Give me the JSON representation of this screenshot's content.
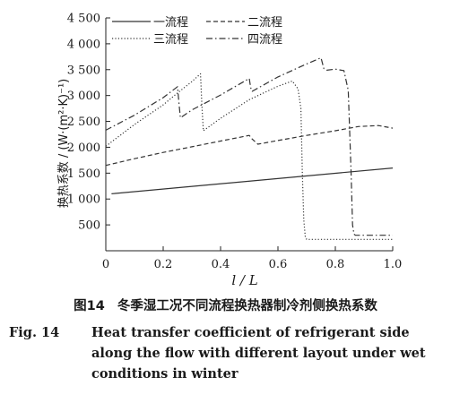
{
  "chart_data": {
    "type": "line",
    "xlabel": "l / L",
    "ylabel": "换热系数 / (W·(m²·K)⁻¹)",
    "xlim": [
      0,
      1.0
    ],
    "ylim": [
      0,
      4500
    ],
    "xticks": [
      "0",
      "0.2",
      "0.4",
      "0.6",
      "0.8",
      "1.0"
    ],
    "yticks": [
      "500",
      "1 000",
      "1 500",
      "2 000",
      "2 500",
      "3 000",
      "3 500",
      "4 000",
      "4 500"
    ],
    "xtick_values": [
      0,
      0.2,
      0.4,
      0.6,
      0.8,
      1.0
    ],
    "ytick_values": [
      500,
      1000,
      1500,
      2000,
      2500,
      3000,
      3500,
      4000,
      4500
    ],
    "legend_position": "top",
    "series": [
      {
        "name": "一流程",
        "style": "solid",
        "color": "#333333",
        "x": [
          0.02,
          1.0
        ],
        "y": [
          1100,
          1600
        ]
      },
      {
        "name": "二流程",
        "style": "dashed",
        "color": "#333333",
        "x": [
          0.0,
          0.1,
          0.2,
          0.3,
          0.4,
          0.5,
          0.51,
          0.53,
          0.6,
          0.7,
          0.8,
          0.88,
          0.95,
          1.0
        ],
        "y": [
          1650,
          1780,
          1900,
          2010,
          2120,
          2230,
          2160,
          2060,
          2130,
          2230,
          2320,
          2400,
          2420,
          2370
        ]
      },
      {
        "name": "三流程",
        "style": "dotted",
        "color": "#333333",
        "x": [
          0.0,
          0.1,
          0.2,
          0.25,
          0.3,
          0.33,
          0.335,
          0.34,
          0.4,
          0.5,
          0.6,
          0.65,
          0.67,
          0.68,
          0.685,
          0.69,
          0.695,
          0.7,
          0.8,
          0.9,
          1.0
        ],
        "y": [
          2020,
          2440,
          2820,
          3050,
          3270,
          3420,
          2800,
          2320,
          2560,
          2920,
          3180,
          3280,
          3130,
          2750,
          1500,
          600,
          280,
          220,
          220,
          220,
          220
        ]
      },
      {
        "name": "四流程",
        "style": "dashdot",
        "color": "#333333",
        "x": [
          0.0,
          0.1,
          0.2,
          0.25,
          0.255,
          0.26,
          0.3,
          0.4,
          0.5,
          0.505,
          0.51,
          0.6,
          0.7,
          0.75,
          0.76,
          0.77,
          0.8,
          0.83,
          0.845,
          0.855,
          0.86,
          0.865,
          0.87,
          0.9,
          0.95,
          1.0
        ],
        "y": [
          2330,
          2620,
          2960,
          3170,
          2850,
          2570,
          2720,
          3010,
          3330,
          3150,
          3080,
          3360,
          3610,
          3730,
          3520,
          3490,
          3510,
          3480,
          3100,
          1500,
          500,
          320,
          300,
          300,
          300,
          300
        ]
      }
    ]
  },
  "caption": {
    "zh_number": "图14",
    "zh_text": "冬季湿工况不同流程换热器制冷剂侧换热系数",
    "en_number": "Fig. 14",
    "en_text": "Heat transfer coefficient of refrigerant side along the flow with different layout under wet conditions in winter"
  }
}
